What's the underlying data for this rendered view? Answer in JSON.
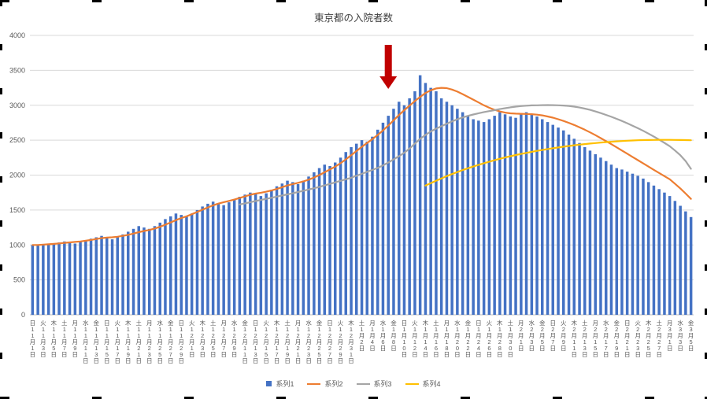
{
  "chart_data": {
    "type": "bar",
    "title": "東京都の入院者数",
    "ylim": [
      0,
      4000
    ],
    "y_ticks": [
      0,
      500,
      1000,
      1500,
      2000,
      2500,
      3000,
      3500,
      4000
    ],
    "grid": "horizontal",
    "legend_position": "bottom",
    "x_tick_labels": [
      "日|11月1日",
      "火|11月3日",
      "木|11月5日",
      "土|11月7日",
      "月|11月9日",
      "水|11月11日",
      "金|11月13日",
      "日|11月15日",
      "火|11月17日",
      "木|11月19日",
      "土|11月21日",
      "月|11月23日",
      "水|11月25日",
      "金|11月27日",
      "日|11月29日",
      "火|12月1日",
      "木|12月3日",
      "土|12月5日",
      "月|12月7日",
      "水|12月9日",
      "金|12月11日",
      "日|12月13日",
      "火|12月15日",
      "木|12月17日",
      "土|12月19日",
      "月|12月21日",
      "水|12月23日",
      "金|12月25日",
      "日|12月27日",
      "火|12月29日",
      "木|12月31日",
      "土|1月2日",
      "月|1月4日",
      "水|1月6日",
      "金|1月8日",
      "日|1月10日",
      "火|1月12日",
      "木|1月14日",
      "土|1月16日",
      "月|1月18日",
      "水|1月20日",
      "金|1月22日",
      "日|1月24日",
      "火|1月26日",
      "木|1月28日",
      "土|1月30日",
      "月|2月1日",
      "水|2月3日",
      "金|2月5日",
      "日|2月7日",
      "火|2月9日",
      "木|2月11日",
      "土|2月13日",
      "月|2月15日",
      "水|2月17日",
      "金|2月19日",
      "日|2月21日",
      "火|2月23日",
      "木|2月25日",
      "土|2月27日",
      "月|3月1日",
      "水|3月3日",
      "金|3月5日"
    ],
    "series": [
      {
        "name": "系列1",
        "type": "bar",
        "color": "#4472C4",
        "start_index": 0,
        "values": [
          1000,
          990,
          1010,
          1005,
          1020,
          1035,
          1050,
          1040,
          1020,
          1045,
          1070,
          1090,
          1110,
          1130,
          1100,
          1080,
          1110,
          1150,
          1190,
          1230,
          1270,
          1250,
          1230,
          1270,
          1320,
          1370,
          1410,
          1450,
          1430,
          1410,
          1450,
          1500,
          1550,
          1590,
          1620,
          1600,
          1570,
          1610,
          1650,
          1690,
          1720,
          1750,
          1730,
          1700,
          1740,
          1790,
          1840,
          1880,
          1920,
          1900,
          1870,
          1920,
          1980,
          2040,
          2100,
          2150,
          2130,
          2180,
          2250,
          2330,
          2400,
          2450,
          2500,
          2480,
          2550,
          2650,
          2750,
          2850,
          2950,
          3050,
          3000,
          3100,
          3200,
          3430,
          3320,
          3250,
          3200,
          3100,
          3050,
          3000,
          2950,
          2900,
          2850,
          2800,
          2780,
          2760,
          2800,
          2850,
          2900,
          2870,
          2840,
          2820,
          2880,
          2900,
          2870,
          2840,
          2800,
          2760,
          2720,
          2680,
          2640,
          2580,
          2520,
          2460,
          2400,
          2350,
          2300,
          2250,
          2200,
          2150,
          2100,
          2080,
          2050,
          2020,
          1990,
          1950,
          1900,
          1850,
          1800,
          1750,
          1700,
          1630,
          1560,
          1480,
          1400
        ]
      },
      {
        "name": "系列2",
        "type": "line",
        "color": "#ED7D31",
        "start_index": 0,
        "values": [
          1000,
          1000,
          1005,
          1010,
          1015,
          1022,
          1030,
          1037,
          1043,
          1050,
          1060,
          1072,
          1085,
          1098,
          1105,
          1110,
          1118,
          1130,
          1145,
          1163,
          1183,
          1200,
          1215,
          1235,
          1260,
          1290,
          1322,
          1355,
          1385,
          1410,
          1440,
          1472,
          1505,
          1537,
          1567,
          1592,
          1612,
          1630,
          1650,
          1672,
          1695,
          1718,
          1735,
          1748,
          1762,
          1780,
          1802,
          1827,
          1852,
          1872,
          1890,
          1910,
          1935,
          1965,
          2000,
          2040,
          2080,
          2122,
          2170,
          2225,
          2285,
          2345,
          2405,
          2460,
          2515,
          2575,
          2640,
          2710,
          2785,
          2860,
          2930,
          2995,
          3060,
          3120,
          3175,
          3215,
          3240,
          3250,
          3245,
          3225,
          3195,
          3160,
          3120,
          3080,
          3040,
          3000,
          2965,
          2935,
          2912,
          2895,
          2885,
          2880,
          2878,
          2876,
          2872,
          2865,
          2855,
          2840,
          2822,
          2800,
          2775,
          2748,
          2718,
          2685,
          2650,
          2612,
          2572,
          2530,
          2487,
          2443,
          2398,
          2352,
          2306,
          2260,
          2214,
          2168,
          2122,
          2076,
          2030,
          1985,
          1940,
          1875,
          1810,
          1735,
          1660
        ]
      },
      {
        "name": "系列3",
        "type": "line",
        "color": "#A5A5A5",
        "start_index": 39,
        "values": [
          1580,
          1596,
          1612,
          1628,
          1644,
          1660,
          1676,
          1692,
          1708,
          1724,
          1740,
          1758,
          1776,
          1794,
          1812,
          1830,
          1852,
          1874,
          1896,
          1918,
          1940,
          1962,
          1990,
          2018,
          2046,
          2074,
          2102,
          2140,
          2180,
          2225,
          2270,
          2320,
          2380,
          2450,
          2520,
          2575,
          2625,
          2665,
          2700,
          2735,
          2768,
          2800,
          2825,
          2848,
          2868,
          2886,
          2902,
          2916,
          2930,
          2945,
          2958,
          2970,
          2980,
          2988,
          2994,
          2998,
          3000,
          3002,
          3003,
          3002,
          3000,
          2996,
          2990,
          2980,
          2968,
          2952,
          2934,
          2912,
          2888,
          2862,
          2835,
          2806,
          2775,
          2742,
          2708,
          2672,
          2634,
          2594,
          2552,
          2508,
          2462,
          2414,
          2352,
          2285,
          2200,
          2090
        ]
      },
      {
        "name": "系列4",
        "type": "line",
        "color": "#FFC000",
        "start_index": 74,
        "values": [
          1850,
          1885,
          1920,
          1953,
          1985,
          2015,
          2044,
          2072,
          2098,
          2123,
          2147,
          2170,
          2192,
          2213,
          2233,
          2252,
          2270,
          2287,
          2303,
          2318,
          2333,
          2347,
          2360,
          2373,
          2385,
          2396,
          2407,
          2417,
          2427,
          2436,
          2444,
          2452,
          2459,
          2466,
          2472,
          2478,
          2483,
          2488,
          2492,
          2496,
          2499,
          2501,
          2503,
          2504,
          2505,
          2505,
          2505,
          2504,
          2503,
          2501,
          2499
        ]
      }
    ],
    "annotation": {
      "type": "down-arrow",
      "color": "#C00000",
      "day_index": 67
    },
    "colors": {
      "axis_text": "#595959",
      "gridline": "#D9D9D9",
      "axis_line": "#BFBFBF",
      "title_text": "#404040"
    }
  }
}
